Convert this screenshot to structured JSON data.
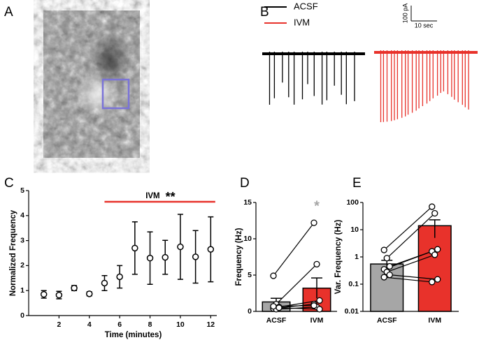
{
  "panel_labels": [
    "A",
    "B",
    "C",
    "D",
    "E"
  ],
  "traces": {
    "legend": [
      {
        "name": "ACSF",
        "color": "#000000"
      },
      {
        "name": "IVM",
        "color": "#e8322b"
      }
    ],
    "scale_bar": {
      "y_label": "100 pA",
      "x_label": "10 sec"
    }
  },
  "chart_data": [
    {
      "type": "scatter",
      "panel": "C",
      "x": [
        1,
        2,
        3,
        4,
        5,
        6,
        7,
        8,
        9,
        10,
        11,
        12
      ],
      "values": [
        0.85,
        0.82,
        1.1,
        0.87,
        1.3,
        1.55,
        2.7,
        2.3,
        2.33,
        2.75,
        2.35,
        2.65
      ],
      "errors": [
        0.15,
        0.15,
        0.1,
        0.08,
        0.3,
        0.45,
        1.05,
        1.05,
        0.68,
        1.3,
        1.05,
        1.3
      ],
      "xlim": [
        0,
        12.4
      ],
      "xticks": [
        2,
        4,
        6,
        8,
        10,
        12
      ],
      "ylim": [
        0,
        5
      ],
      "yticks": [
        0,
        1,
        2,
        3,
        4,
        5
      ],
      "xlabel": "Time (minutes)",
      "ylabel": "Normalized Frequency",
      "annotation": {
        "text": "IVM",
        "stars": "**",
        "x_span": [
          5,
          12.3
        ],
        "color": "#e8322b"
      }
    },
    {
      "type": "bar",
      "panel": "D",
      "categories": [
        "ACSF",
        "IVM"
      ],
      "values": [
        1.3,
        3.2
      ],
      "errors": [
        0.5,
        1.4
      ],
      "colors": [
        "#a6a6a6",
        "#e8322b"
      ],
      "points": [
        [
          4.9,
          1.0,
          0.6,
          0.4,
          0.3,
          0.5,
          0.7
        ],
        [
          12.2,
          6.5,
          1.5,
          1.0,
          0.6,
          0.3,
          0.8
        ]
      ],
      "ylim": [
        0,
        15
      ],
      "yticks": [
        0,
        5,
        10,
        15
      ],
      "ylabel": "Frequency (Hz)",
      "log_scale": false,
      "annotation": {
        "stars": "*",
        "color": "#a6a6a6"
      }
    },
    {
      "type": "bar",
      "panel": "E",
      "categories": [
        "ACSF",
        "IVM"
      ],
      "values": [
        0.55,
        14
      ],
      "errors": [
        0.2,
        9
      ],
      "colors": [
        "#a6a6a6",
        "#e8322b"
      ],
      "points": [
        [
          1.8,
          0.9,
          0.45,
          0.35,
          0.28,
          0.22,
          0.18
        ],
        [
          70,
          40,
          1.9,
          1.6,
          1.2,
          0.15,
          0.12
        ]
      ],
      "ylim": [
        0.01,
        100
      ],
      "yticks": [
        0.01,
        0.1,
        1,
        10,
        100
      ],
      "ylabel": "Var. Frequency (Hz)",
      "log_scale": true
    }
  ]
}
